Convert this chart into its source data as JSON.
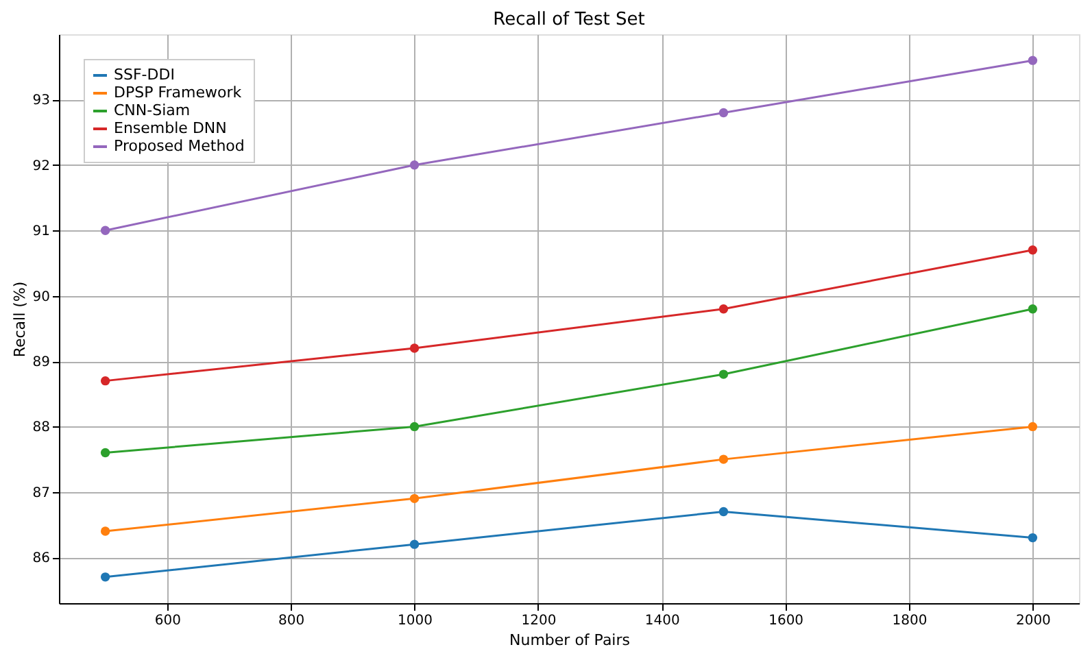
{
  "chart_data": {
    "type": "line",
    "title": "Recall of Test Set",
    "xlabel": "Number of Pairs",
    "ylabel": "Recall (%)",
    "x": [
      500,
      1000,
      1500,
      2000
    ],
    "series": [
      {
        "name": "SSF-DDI",
        "color": "#1f77b4",
        "values": [
          85.7,
          86.2,
          86.7,
          86.3
        ]
      },
      {
        "name": "DPSP Framework",
        "color": "#ff7f0e",
        "values": [
          86.4,
          86.9,
          87.5,
          88.0
        ]
      },
      {
        "name": "CNN-Siam",
        "color": "#2ca02c",
        "values": [
          87.6,
          88.0,
          88.8,
          89.8
        ]
      },
      {
        "name": "Ensemble DNN",
        "color": "#d62728",
        "values": [
          88.7,
          89.2,
          89.8,
          90.7
        ]
      },
      {
        "name": "Proposed Method",
        "color": "#9467bd",
        "values": [
          91.0,
          92.0,
          92.8,
          93.6
        ]
      }
    ],
    "xlim": [
      425,
      2075
    ],
    "xticks": [
      600,
      800,
      1000,
      1200,
      1400,
      1600,
      1800,
      2000
    ],
    "ylim": [
      85.3,
      94.0
    ],
    "yticks": [
      86,
      87,
      88,
      89,
      90,
      91,
      92,
      93
    ],
    "grid": true,
    "legend": "top left",
    "marker": "circle",
    "line_style": "solid"
  }
}
